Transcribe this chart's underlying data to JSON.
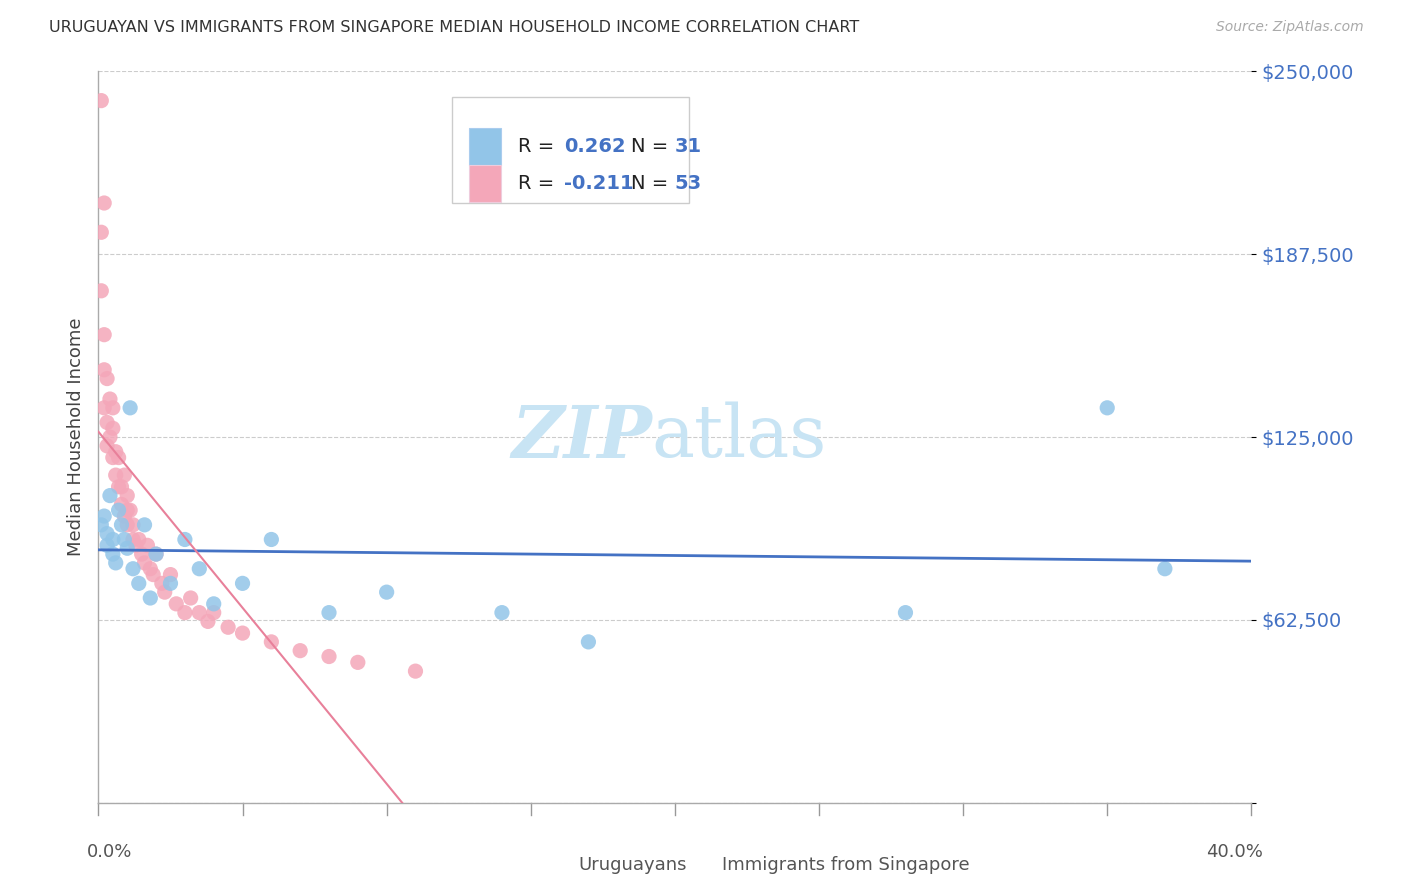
{
  "title": "URUGUAYAN VS IMMIGRANTS FROM SINGAPORE MEDIAN HOUSEHOLD INCOME CORRELATION CHART",
  "source": "Source: ZipAtlas.com",
  "ylabel": "Median Household Income",
  "y_ticks": [
    0,
    62500,
    125000,
    187500,
    250000
  ],
  "y_tick_labels": [
    "",
    "$62,500",
    "$125,000",
    "$187,500",
    "$250,000"
  ],
  "x_range": [
    0,
    0.4
  ],
  "y_range": [
    0,
    250000
  ],
  "legend1_R_prefix": "R = ",
  "legend1_R_val": "0.262",
  "legend1_N_prefix": "N = ",
  "legend1_N_val": "31",
  "legend2_R_prefix": "R = ",
  "legend2_R_val": "-0.211",
  "legend2_N_prefix": "N = ",
  "legend2_N_val": "53",
  "color_blue_scatter": "#92C5E8",
  "color_pink_scatter": "#F4A7B9",
  "color_blue_line": "#4472C4",
  "color_pink_line": "#E8809A",
  "color_blue_text": "#4472C4",
  "color_black_text": "#222222",
  "watermark_color": "#C8E4F4",
  "legend_label1": "Uruguayans",
  "legend_label2": "Immigrants from Singapore",
  "uruguayan_x": [
    0.001,
    0.002,
    0.003,
    0.003,
    0.004,
    0.005,
    0.005,
    0.006,
    0.007,
    0.008,
    0.009,
    0.01,
    0.011,
    0.012,
    0.014,
    0.016,
    0.018,
    0.02,
    0.025,
    0.03,
    0.035,
    0.04,
    0.05,
    0.06,
    0.08,
    0.1,
    0.14,
    0.17,
    0.28,
    0.35,
    0.37
  ],
  "uruguayan_y": [
    95000,
    98000,
    92000,
    88000,
    105000,
    90000,
    85000,
    82000,
    100000,
    95000,
    90000,
    87000,
    135000,
    80000,
    75000,
    95000,
    70000,
    85000,
    75000,
    90000,
    80000,
    68000,
    75000,
    90000,
    65000,
    72000,
    65000,
    55000,
    65000,
    135000,
    80000
  ],
  "singapore_x": [
    0.001,
    0.001,
    0.001,
    0.002,
    0.002,
    0.002,
    0.002,
    0.003,
    0.003,
    0.003,
    0.004,
    0.004,
    0.005,
    0.005,
    0.005,
    0.006,
    0.006,
    0.007,
    0.007,
    0.008,
    0.008,
    0.009,
    0.009,
    0.01,
    0.01,
    0.01,
    0.011,
    0.012,
    0.012,
    0.013,
    0.014,
    0.015,
    0.016,
    0.017,
    0.018,
    0.019,
    0.02,
    0.022,
    0.023,
    0.025,
    0.027,
    0.03,
    0.032,
    0.035,
    0.038,
    0.04,
    0.045,
    0.05,
    0.06,
    0.07,
    0.08,
    0.09,
    0.11
  ],
  "singapore_y": [
    240000,
    195000,
    175000,
    205000,
    160000,
    148000,
    135000,
    145000,
    130000,
    122000,
    138000,
    125000,
    135000,
    128000,
    118000,
    120000,
    112000,
    118000,
    108000,
    108000,
    102000,
    112000,
    98000,
    100000,
    105000,
    95000,
    100000,
    95000,
    90000,
    88000,
    90000,
    85000,
    82000,
    88000,
    80000,
    78000,
    85000,
    75000,
    72000,
    78000,
    68000,
    65000,
    70000,
    65000,
    62000,
    65000,
    60000,
    58000,
    55000,
    52000,
    50000,
    48000,
    45000
  ]
}
